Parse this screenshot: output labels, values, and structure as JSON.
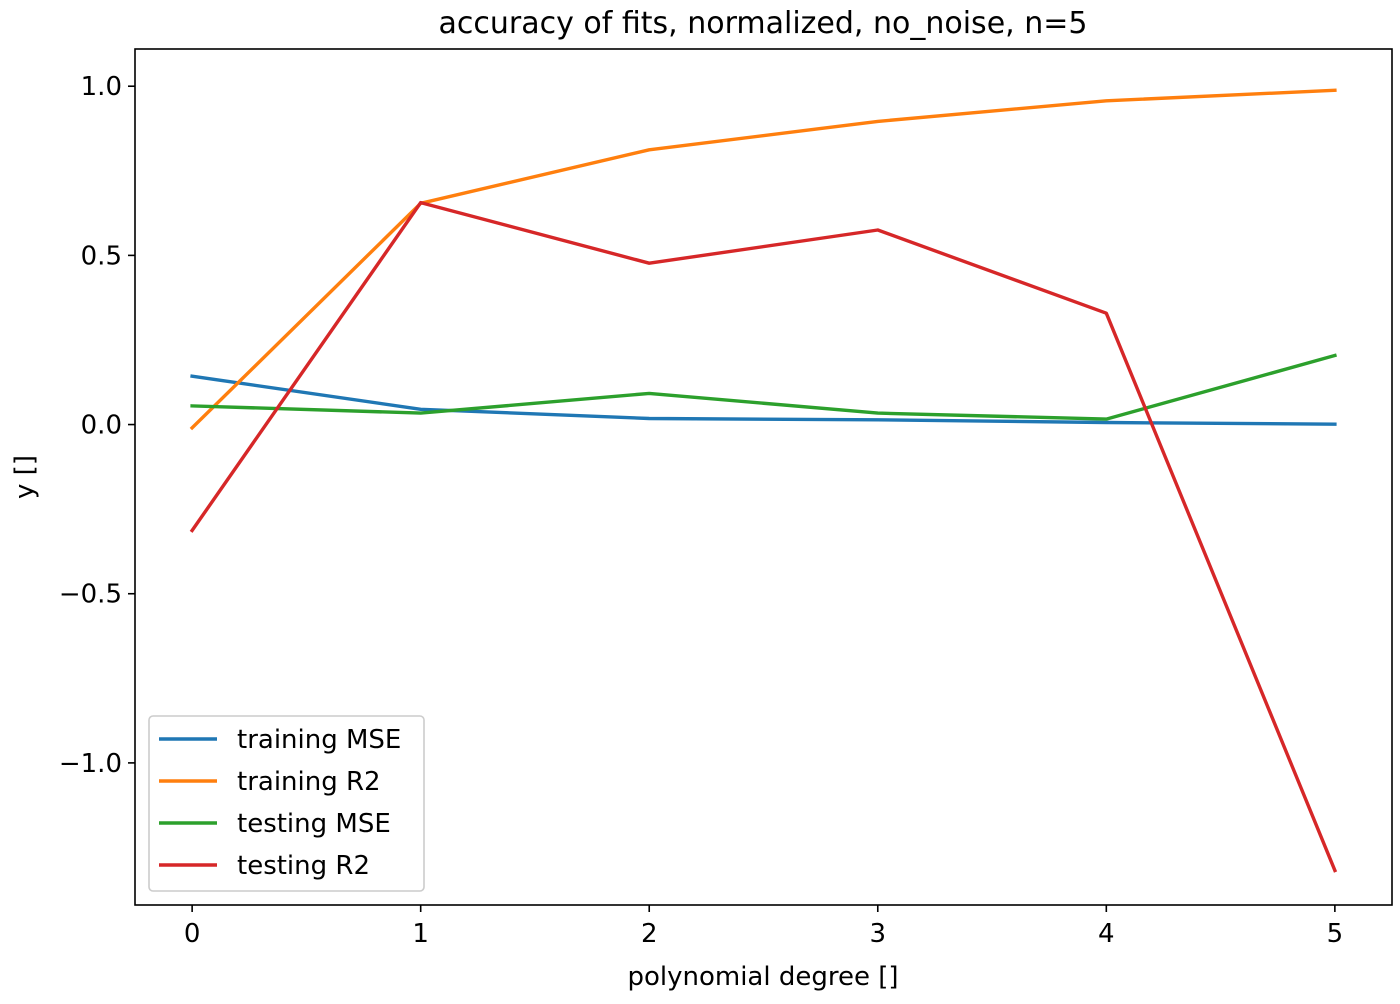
{
  "chart_data": {
    "type": "line",
    "title": "accuracy of fits, normalized, no_noise, n=5",
    "xlabel": "polynomial degree []",
    "ylabel": "y []",
    "x": [
      0,
      1,
      2,
      3,
      4,
      5
    ],
    "xlim": [
      -0.25,
      5.25
    ],
    "ylim": [
      -1.42,
      1.11
    ],
    "xticks": [
      0,
      1,
      2,
      3,
      4,
      5
    ],
    "xtick_labels": [
      "0",
      "1",
      "2",
      "3",
      "4",
      "5"
    ],
    "yticks": [
      -1.0,
      -0.5,
      0.0,
      0.5,
      1.0
    ],
    "ytick_labels": [
      "−1.0",
      "−0.5",
      "0.0",
      "0.5",
      "1.0"
    ],
    "grid": false,
    "legend_position": "lower-left",
    "series": [
      {
        "name": "training MSE",
        "color": "#1f77b4",
        "values": [
          0.143,
          0.045,
          0.018,
          0.014,
          0.006,
          0.001
        ]
      },
      {
        "name": "training R2",
        "color": "#ff7f0e",
        "values": [
          -0.01,
          0.654,
          0.812,
          0.896,
          0.957,
          0.988
        ]
      },
      {
        "name": "testing MSE",
        "color": "#2ca02c",
        "values": [
          0.055,
          0.034,
          0.092,
          0.034,
          0.016,
          0.204
        ]
      },
      {
        "name": "testing R2",
        "color": "#d62728",
        "values": [
          -0.313,
          0.656,
          0.477,
          0.575,
          0.329,
          -1.318
        ]
      }
    ]
  }
}
